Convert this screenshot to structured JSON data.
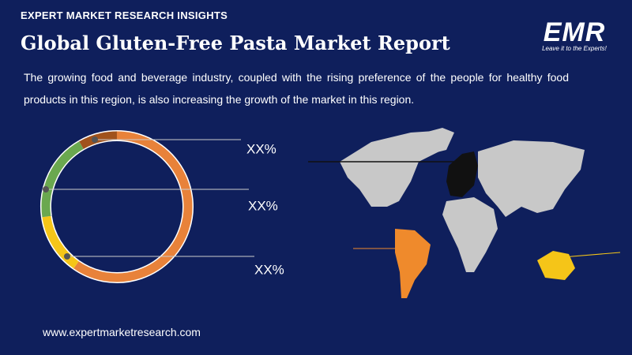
{
  "header": {
    "kicker": "EXPERT MARKET RESEARCH INSIGHTS",
    "title": "Global Gluten-Free Pasta Market Report"
  },
  "logo": {
    "text": "EMR",
    "tagline": "Leave it to the Experts!"
  },
  "description": "The growing food and beverage industry, coupled with the rising preference of the people for healthy food products in this region, is also increasing the growth of the market in this region.",
  "donut_labels": [
    "XX%",
    "XX%",
    "XX%"
  ],
  "footer": {
    "url": "www.expertmarketresearch.com"
  }
}
